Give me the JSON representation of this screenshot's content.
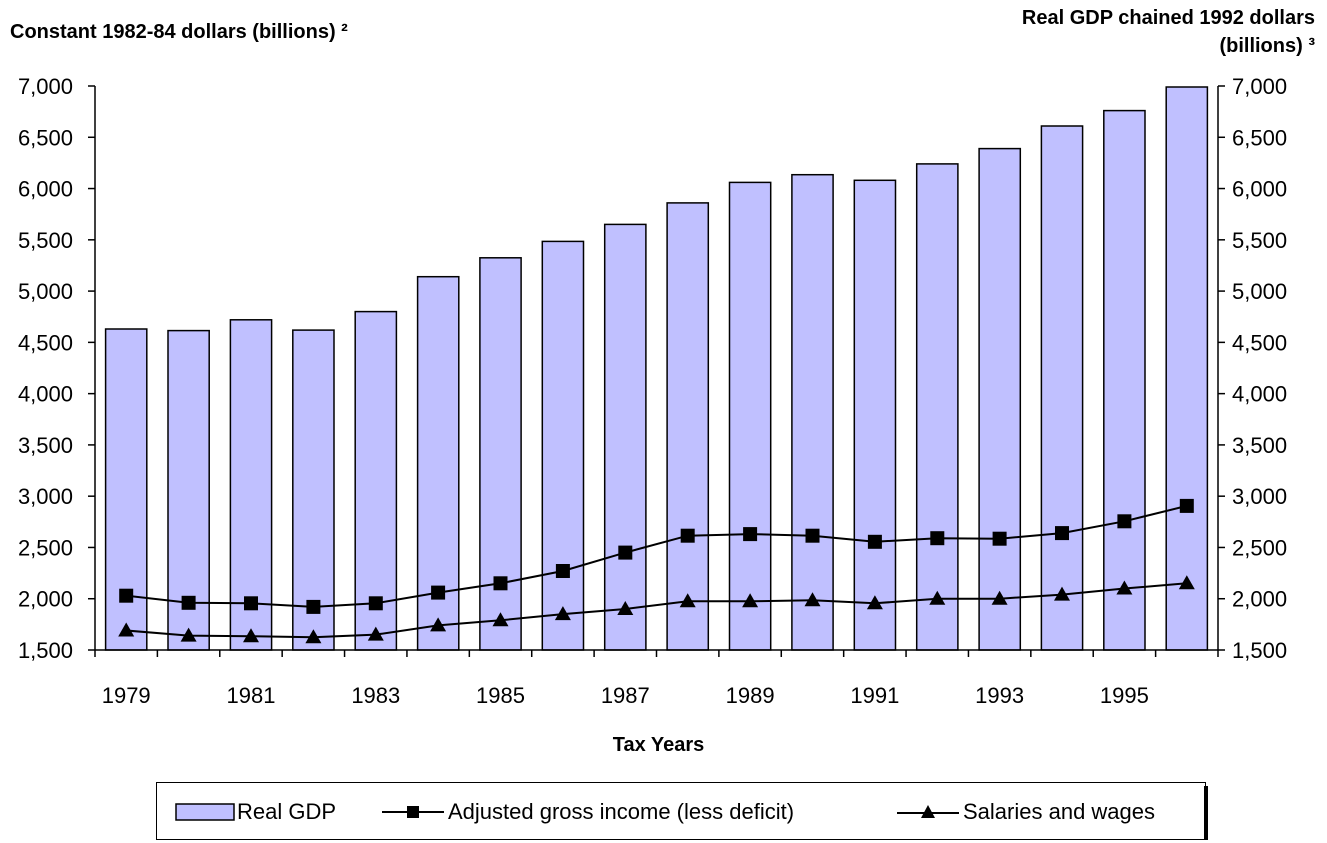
{
  "chart_data": {
    "type": "bar",
    "ylabel_left": "Constant 1982-84 dollars (billions) ²",
    "ylabel_right_lines": [
      "Real GDP chained 1992 dollars",
      "(billions) ³"
    ],
    "xlabel": "Tax Years",
    "ylim": [
      1500,
      7000
    ],
    "yticks": [
      "1,500",
      "2,000",
      "2,500",
      "3,000",
      "3,500",
      "4,000",
      "4,500",
      "5,000",
      "5,500",
      "6,000",
      "6,500",
      "7,000"
    ],
    "ytick_values": [
      1500,
      2000,
      2500,
      3000,
      3500,
      4000,
      4500,
      5000,
      5500,
      6000,
      6500,
      7000
    ],
    "categories": [
      1979,
      1980,
      1981,
      1982,
      1983,
      1984,
      1985,
      1986,
      1987,
      1988,
      1989,
      1990,
      1991,
      1992,
      1993,
      1994,
      1995,
      1996
    ],
    "xtick_labels": [
      "1979",
      "1981",
      "1983",
      "1985",
      "1987",
      "1989",
      "1991",
      "1993",
      "1995"
    ],
    "series": [
      {
        "name": "Real GDP",
        "type": "bar",
        "color": "#c0c0ff",
        "values": [
          4630,
          4615,
          4720,
          4620,
          4800,
          5140,
          5325,
          5485,
          5650,
          5860,
          6060,
          6135,
          6080,
          6240,
          6390,
          6610,
          6760,
          6990
        ]
      },
      {
        "name": "Adjusted gross income (less deficit)",
        "type": "line",
        "marker": "square",
        "values": [
          2030,
          1960,
          1955,
          1920,
          1955,
          2060,
          2150,
          2270,
          2450,
          2615,
          2630,
          2615,
          2555,
          2590,
          2585,
          2640,
          2755,
          2905
        ]
      },
      {
        "name": "Salaries and wages",
        "type": "line",
        "marker": "triangle",
        "values": [
          1690,
          1640,
          1635,
          1625,
          1650,
          1740,
          1790,
          1850,
          1900,
          1975,
          1975,
          1985,
          1955,
          2000,
          2000,
          2040,
          2100,
          2150
        ]
      }
    ],
    "legend_position": "bottom"
  }
}
